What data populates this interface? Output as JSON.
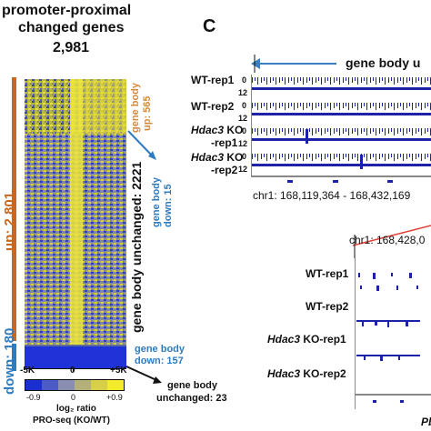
{
  "left_panel": {
    "title_line1": "promoter-proximal",
    "title_line2": "changed genes",
    "count": "2,981",
    "up_label": "up: 2,801",
    "down_label": "down: 180",
    "body_up_line1": "gene body",
    "body_up_line2": "up: 565",
    "body_down15_line1": "gene body",
    "body_down15_line2": "down: 15",
    "unchanged_2221": "gene body unchanged: 2221",
    "body_down157_line1": "gene body",
    "body_down157_line2": "down: 157",
    "unchanged23_line1": "gene body",
    "unchanged23_line2": "unchanged: 23",
    "axis_left": "-5K",
    "axis_mid": "0",
    "axis_right": "+5K",
    "colorbar_ticks": [
      "-0.9",
      "0",
      "+0.9"
    ],
    "colorbar_label_line1": "log₂ ratio",
    "colorbar_label_line2": "PRO-seq (KO/WT)",
    "colors": {
      "up": "#c8671f",
      "down": "#2f7bbf",
      "heat_low": "#1a2fd0",
      "heat_high": "#f2ea2a"
    }
  },
  "right_panel": {
    "panel_letter": "C",
    "gene_body_label": "gene body u",
    "tracks_top": [
      {
        "name": "WT-rep1",
        "top": "0",
        "bottom": "12"
      },
      {
        "name": "WT-rep2",
        "top": "0",
        "bottom": "12"
      },
      {
        "name_italic": "Hdac3",
        "name": " KO",
        "name2": "-rep1",
        "top": "0",
        "bottom": "12"
      },
      {
        "name_italic": "Hdac3",
        "name": " KO",
        "name2": "-rep2",
        "top": "0",
        "bottom": "12"
      }
    ],
    "coords_top": "chr1: 168,119,364 - 168,432,169",
    "coords_zoom": "chr1: 168,428,0",
    "tracks_zoom": [
      {
        "name": "WT-rep1"
      },
      {
        "name": "WT-rep2"
      },
      {
        "name_italic": "Hdac3",
        "name": " KO-rep1"
      },
      {
        "name_italic": "Hdac3",
        "name": " KO-rep2"
      }
    ],
    "gene_label": "Pb",
    "colors": {
      "signal": "#1c22a8",
      "arrow": "#3b7fbf",
      "zoom_line": "#e0403a"
    }
  }
}
